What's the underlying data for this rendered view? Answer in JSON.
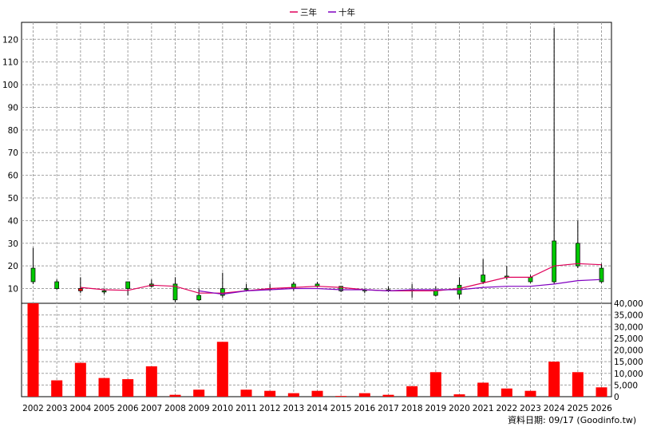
{
  "chart_data": {
    "type": "candlestick",
    "legend": {
      "placement": "top-center",
      "items": [
        {
          "label": "三年",
          "color": "#e0005a"
        },
        {
          "label": "十年",
          "color": "#8000c0"
        }
      ]
    },
    "years": [
      "2002",
      "2003",
      "2004",
      "2005",
      "2006",
      "2007",
      "2008",
      "2009",
      "2010",
      "2011",
      "2012",
      "2013",
      "2014",
      "2015",
      "2016",
      "2017",
      "2018",
      "2019",
      "2020",
      "2021",
      "2022",
      "2023",
      "2024",
      "2025",
      "2026"
    ],
    "price_axis": {
      "ticks": [
        10,
        20,
        30,
        40,
        50,
        60,
        70,
        80,
        90,
        100,
        110,
        120
      ],
      "range": [
        3.5,
        127.5
      ],
      "grid": true
    },
    "volume_axis": {
      "ticks": [
        "0",
        "5,000",
        "10,000",
        "15,000",
        "20,000",
        "25,000",
        "30,000",
        "35,000",
        "40,000"
      ],
      "tick_values": [
        0,
        5000,
        10000,
        15000,
        20000,
        25000,
        30000,
        35000,
        40000
      ],
      "range": [
        0,
        40000
      ]
    },
    "candles": [
      {
        "year": "2002",
        "open": 13,
        "close": 19,
        "high": 28,
        "low": 12
      },
      {
        "year": "2003",
        "open": 10,
        "close": 13,
        "high": 14,
        "low": 9.5
      },
      {
        "year": "2004",
        "open": 10,
        "close": 9,
        "high": 15,
        "low": 8
      },
      {
        "year": "2005",
        "open": 9,
        "close": 9,
        "high": 10,
        "low": 7.5
      },
      {
        "year": "2006",
        "open": 10,
        "close": 13,
        "high": 13,
        "low": 7
      },
      {
        "year": "2007",
        "open": 11,
        "close": 12,
        "high": 14,
        "low": 10.5
      },
      {
        "year": "2008",
        "open": 5,
        "close": 12,
        "high": 15,
        "low": 4
      },
      {
        "year": "2009",
        "open": 5,
        "close": 7,
        "high": 10,
        "low": 4.5
      },
      {
        "year": "2010",
        "open": 7,
        "close": 10,
        "high": 17,
        "low": 6
      },
      {
        "year": "2011",
        "open": 9.5,
        "close": 10,
        "high": 12,
        "low": 9
      },
      {
        "year": "2012",
        "open": 9.5,
        "close": 10,
        "high": 12,
        "low": 9
      },
      {
        "year": "2013",
        "open": 10,
        "close": 12,
        "high": 13,
        "low": 9
      },
      {
        "year": "2014",
        "open": 11,
        "close": 12,
        "high": 13,
        "low": 10.5
      },
      {
        "year": "2015",
        "open": 9,
        "close": 11,
        "high": 11,
        "low": 8.5
      },
      {
        "year": "2016",
        "open": 9,
        "close": 9.5,
        "high": 10,
        "low": 8
      },
      {
        "year": "2017",
        "open": 9,
        "close": 9.5,
        "high": 11,
        "low": 8.5
      },
      {
        "year": "2018",
        "open": 9,
        "close": 9.5,
        "high": 12,
        "low": 6
      },
      {
        "year": "2019",
        "open": 7,
        "close": 9,
        "high": 11,
        "low": 6.5
      },
      {
        "year": "2020",
        "open": 7.5,
        "close": 11.5,
        "high": 15,
        "low": 5.5
      },
      {
        "year": "2021",
        "open": 13,
        "close": 16,
        "high": 23,
        "low": 12
      },
      {
        "year": "2022",
        "open": 15,
        "close": 15.5,
        "high": 20,
        "low": 14
      },
      {
        "year": "2023",
        "open": 13,
        "close": 15,
        "high": 16,
        "low": 12.5
      },
      {
        "year": "2024",
        "open": 13,
        "close": 31,
        "high": 125,
        "low": 12
      },
      {
        "year": "2025",
        "open": 20,
        "close": 30,
        "high": 40,
        "low": 19
      },
      {
        "year": "2026",
        "open": 13,
        "close": 19,
        "high": 21,
        "low": 12.5
      }
    ],
    "ma3": {
      "name": "三年",
      "color": "#e0005a",
      "values": [
        null,
        null,
        10.5,
        9.5,
        9.2,
        11.5,
        11,
        8,
        8,
        9,
        10,
        10.5,
        11,
        10.5,
        9.5,
        9,
        9,
        9,
        10,
        12.5,
        15,
        15,
        20,
        21,
        20.5
      ]
    },
    "ma10": {
      "name": "十年",
      "color": "#8000c0",
      "values": [
        null,
        null,
        null,
        null,
        null,
        null,
        null,
        9,
        7.5,
        9,
        9.5,
        10,
        10,
        9.5,
        9.5,
        9,
        9.5,
        9.5,
        9.5,
        10.5,
        11,
        11,
        12,
        13.5,
        14
      ]
    },
    "volume": [
      40000,
      7000,
      14500,
      8000,
      7500,
      13000,
      800,
      3000,
      23500,
      3000,
      2500,
      1500,
      2500,
      300,
      1500,
      800,
      4500,
      10500,
      1000,
      6000,
      3500,
      2500,
      15000,
      10500,
      4000
    ],
    "source_note": "資料日期: 09/17 (Goodinfo.tw)"
  }
}
